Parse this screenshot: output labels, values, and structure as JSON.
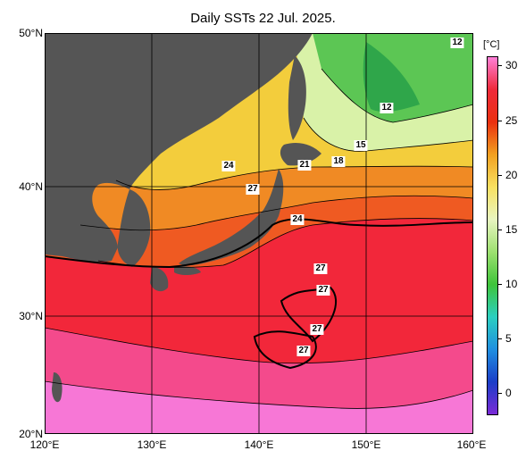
{
  "title": "Daily SSTs 22 Jul. 2025.",
  "lat_labels": [
    "50°N",
    "40°N",
    "30°N",
    "20°N"
  ],
  "lon_labels": [
    "120°E",
    "130°E",
    "140°E",
    "150°E",
    "160°E"
  ],
  "colorbar": {
    "unit": "[°C]",
    "ticks": [
      "30",
      "25",
      "20",
      "15",
      "10",
      "5",
      "0"
    ],
    "colors": [
      "#7a2ad6",
      "#1b3ec8",
      "#1f8fe0",
      "#2ccfc0",
      "#3fc43a",
      "#9de070",
      "#e8f5c0",
      "#f8e060",
      "#f2a020",
      "#ea3010",
      "#ee2a3a",
      "#ff80d8"
    ]
  },
  "contour_labels": [
    "12",
    "12",
    "15",
    "18",
    "21",
    "24",
    "24",
    "27",
    "27",
    "27",
    "27",
    "27"
  ],
  "colors": {
    "land": "#555555",
    "warm_sea": "#f2273a",
    "hot_sea": "#f55ac0",
    "mid_sea": "#ef8a2a",
    "cool_sea": "#f3cd3c",
    "cold_sea": "#5cc654"
  }
}
